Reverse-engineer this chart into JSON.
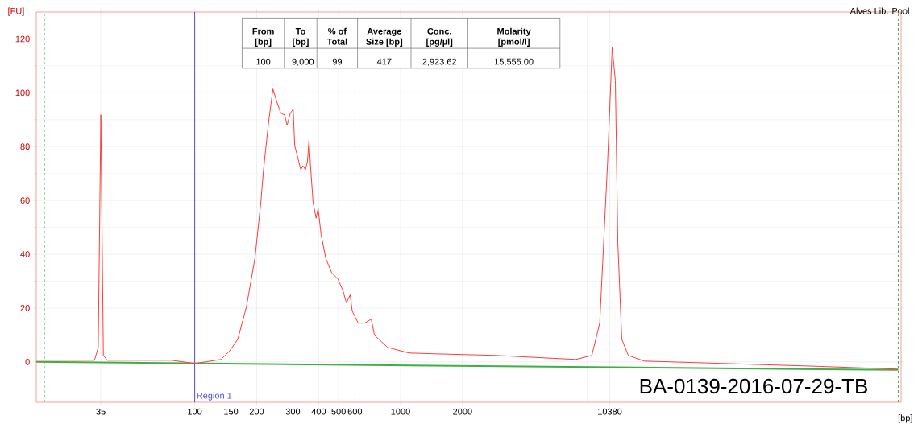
{
  "chart_data": {
    "type": "line",
    "title": "Alves Lib. Pool",
    "xlabel": "[bp]",
    "ylabel": "[FU]",
    "log": "x",
    "xlim": [
      17,
      270000
    ],
    "ylim": [
      -15,
      130
    ],
    "xticks": [
      35,
      100,
      150,
      200,
      300,
      400,
      500,
      600,
      1000,
      2000,
      10380
    ],
    "yticks": [
      0,
      20,
      40,
      60,
      80,
      100,
      120
    ],
    "grid": true,
    "marker": "none",
    "line_style": "solid",
    "series": [
      {
        "color": "#ff3b3b",
        "x": [
          17,
          32.6,
          34.0,
          35,
          36.0,
          37.6,
          50.1,
          77.2,
          100,
          134.3,
          147.2,
          162.0,
          178.3,
          196.1,
          209.6,
          215.9,
          228.8,
          239.9,
          250.0,
          261.9,
          273.1,
          281.2,
          291.2,
          300.8,
          306.0,
          316.7,
          327.8,
          335.3,
          345.0,
          352.9,
          359.1,
          365.2,
          375.7,
          388.8,
          397.7,
          410.9,
          433.5,
          463.4,
          495.5,
          525.3,
          545.7,
          569.2,
          582.3,
          622.6,
          669.6,
          720.2,
          747.1,
          864.1,
          1099.6,
          1460.5,
          2916,
          7104,
          8495,
          9279,
          10134,
          10666,
          11053,
          11358,
          11874,
          12767,
          15286,
          37640,
          92700,
          261500
        ],
        "values": [
          0.6,
          0.6,
          5.4,
          91.8,
          2.4,
          0.6,
          0.6,
          0.6,
          -0.6,
          0.9,
          3.9,
          8.4,
          20.4,
          38.4,
          59.4,
          71.4,
          89.4,
          101.4,
          96.9,
          92.4,
          91.8,
          87.9,
          92.4,
          93.9,
          80.4,
          75.9,
          71.4,
          72.9,
          71.4,
          74.4,
          82.5,
          72.9,
          59.4,
          53.4,
          57.0,
          47.4,
          38.4,
          33.0,
          30.9,
          26.4,
          21.9,
          24.9,
          18.9,
          14.4,
          14.4,
          15.9,
          9.9,
          5.4,
          3.3,
          3.0,
          2.4,
          0.9,
          2.4,
          14.4,
          74.4,
          117.0,
          104.4,
          44.4,
          8.4,
          2.4,
          0.3,
          -0.6,
          -1.5,
          -2.7
        ]
      },
      {
        "color": "#3cb043",
        "x": [
          17,
          261500
        ],
        "values": [
          0,
          -3.0
        ],
        "type": "line"
      }
    ],
    "ref_lines": [
      {
        "axis": "x",
        "value": 100,
        "label": "Region 1",
        "color": "#5050e0",
        "line_style": "solid"
      },
      {
        "axis": "x",
        "value": 8118,
        "color": "#5050e0",
        "line_style": "solid"
      },
      {
        "axis": "x",
        "value": 18.6,
        "color": "#3cb043",
        "line_style": "dashed"
      },
      {
        "axis": "x",
        "value": 261500,
        "color": "#3cb043",
        "line_style": "dashed"
      }
    ],
    "annotations": [
      "From [bp]",
      "To [bp]",
      "% of Total",
      "Average Size [bp]",
      "Conc. [pg/µl]",
      "Molarity [pmol/l]",
      "100",
      "9,000",
      "99",
      "417",
      "2,923.62",
      "15,555.00",
      "BA-0139-2016-07-29-TB"
    ]
  }
}
